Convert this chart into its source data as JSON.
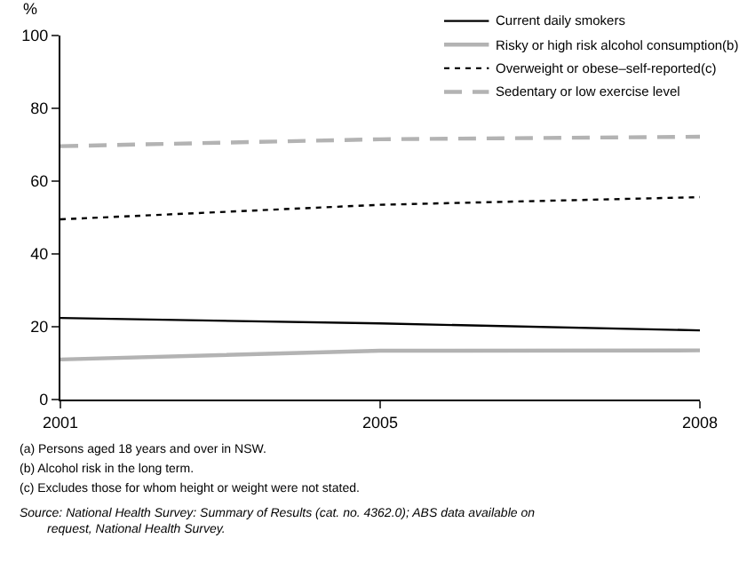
{
  "chart_data": {
    "type": "line",
    "ylabel": "%",
    "categories": [
      "2001",
      "2005",
      "2008"
    ],
    "series": [
      {
        "name": "Current daily smokers",
        "color": "#000000",
        "line_style": "solid",
        "values": [
          22.4,
          20.9,
          19.0
        ]
      },
      {
        "name": "Risky or high risk alcohol consumption(b)",
        "color": "#b3b3b3",
        "line_style": "solid",
        "values": [
          11.0,
          13.4,
          13.5
        ]
      },
      {
        "name": "Overweight or obese–self-reported(c)",
        "color": "#000000",
        "line_style": "dotted",
        "values": [
          49.5,
          53.5,
          55.6
        ]
      },
      {
        "name": "Sedentary or low exercise level",
        "color": "#b3b3b3",
        "line_style": "dashed",
        "values": [
          69.6,
          71.5,
          72.2
        ]
      }
    ],
    "ylim": [
      0,
      100
    ],
    "yticks": [
      0,
      20,
      40,
      60,
      80,
      100
    ],
    "legend": "top right",
    "marker": "none",
    "annotations": [
      "(a) Persons aged 18 years and over in NSW.",
      "(b) Alcohol risk in the long term.",
      "(c) Excludes those for whom height or weight were not stated.",
      "Source: National Health Survey: Summary of Results (cat. no. 4362.0); ABS data available on request, National Health Survey."
    ]
  }
}
